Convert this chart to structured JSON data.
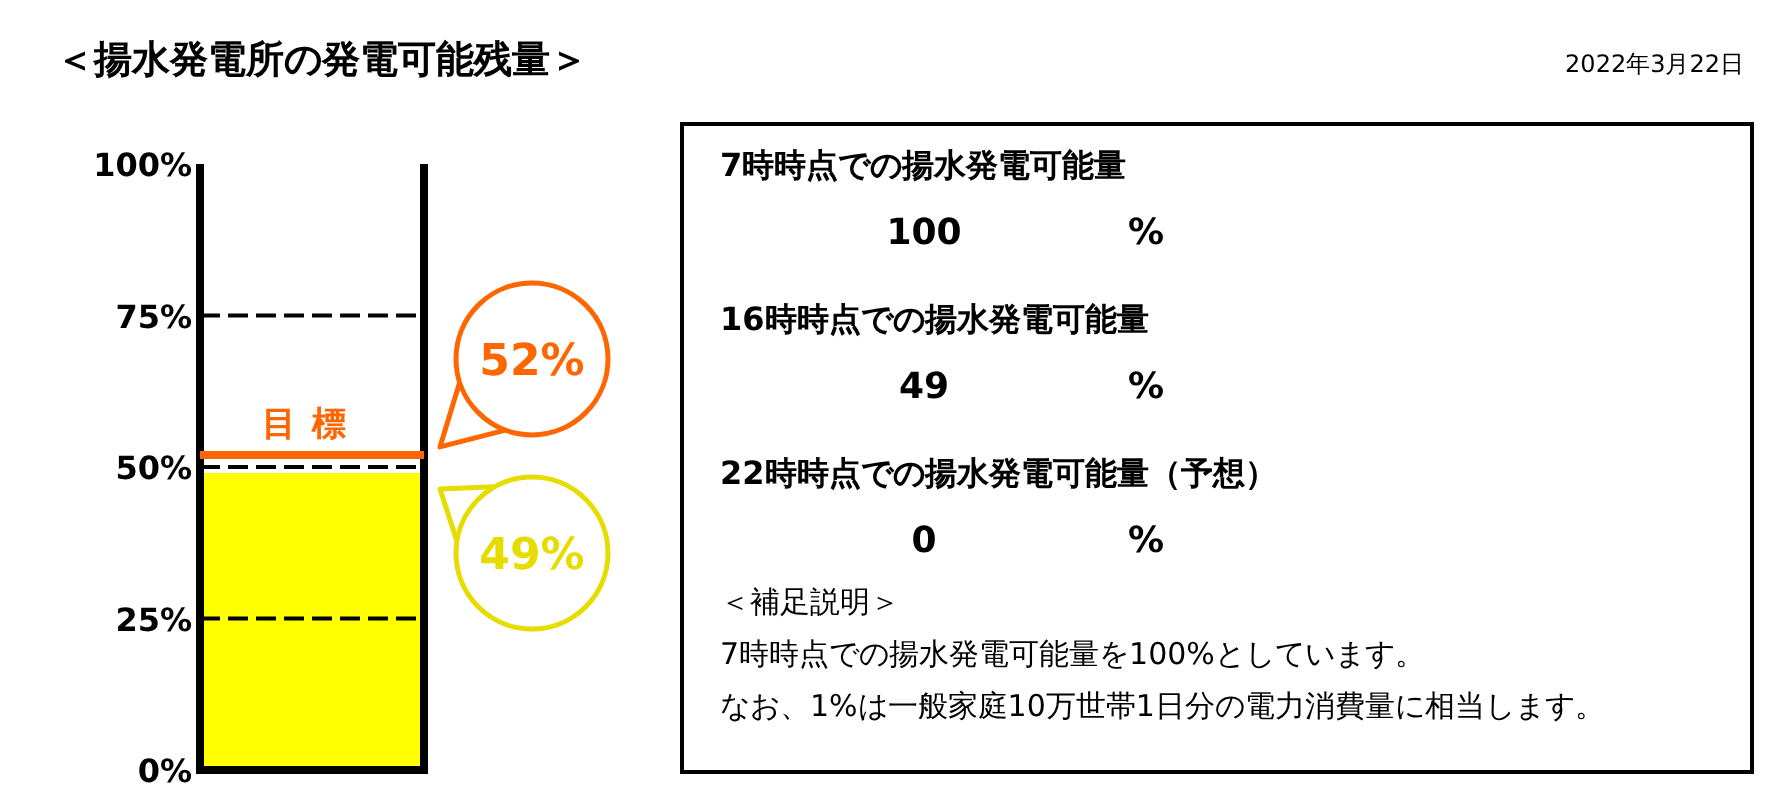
{
  "chart_data": [
    {
      "type": "bar",
      "title": "＜揚水発電所の発電可能残量＞",
      "categories": [
        null
      ],
      "values": [
        49
      ],
      "color": "#ffff00",
      "ylim": [
        0,
        100
      ],
      "yticks": [
        {
          "value": 0,
          "label": "0%"
        },
        {
          "value": 25,
          "label": "25%"
        },
        {
          "value": 50,
          "label": "50%"
        },
        {
          "value": 75,
          "label": "75%"
        },
        {
          "value": 100,
          "label": "100%"
        }
      ],
      "grid": "y",
      "ref_lines": [
        {
          "axis": "y",
          "value": 52,
          "label": "目標",
          "color": "#ff6600"
        }
      ],
      "annotations": [
        "52%",
        "49%",
        "2022年3月22日"
      ]
    },
    {
      "type": "other",
      "annotations": [
        "7時時点での揚水発電可能量",
        "100",
        "%",
        "16時時点での揚水発電可能量",
        "49",
        "%",
        "22時時点での揚水発電可能量（予想）",
        "0",
        "%",
        "＜補足説明＞",
        "7時時点での揚水発電可能量を100%としています。",
        "なお、1%は一般家庭10万世帯1日分の電力消費量に相当します。"
      ]
    }
  ]
}
